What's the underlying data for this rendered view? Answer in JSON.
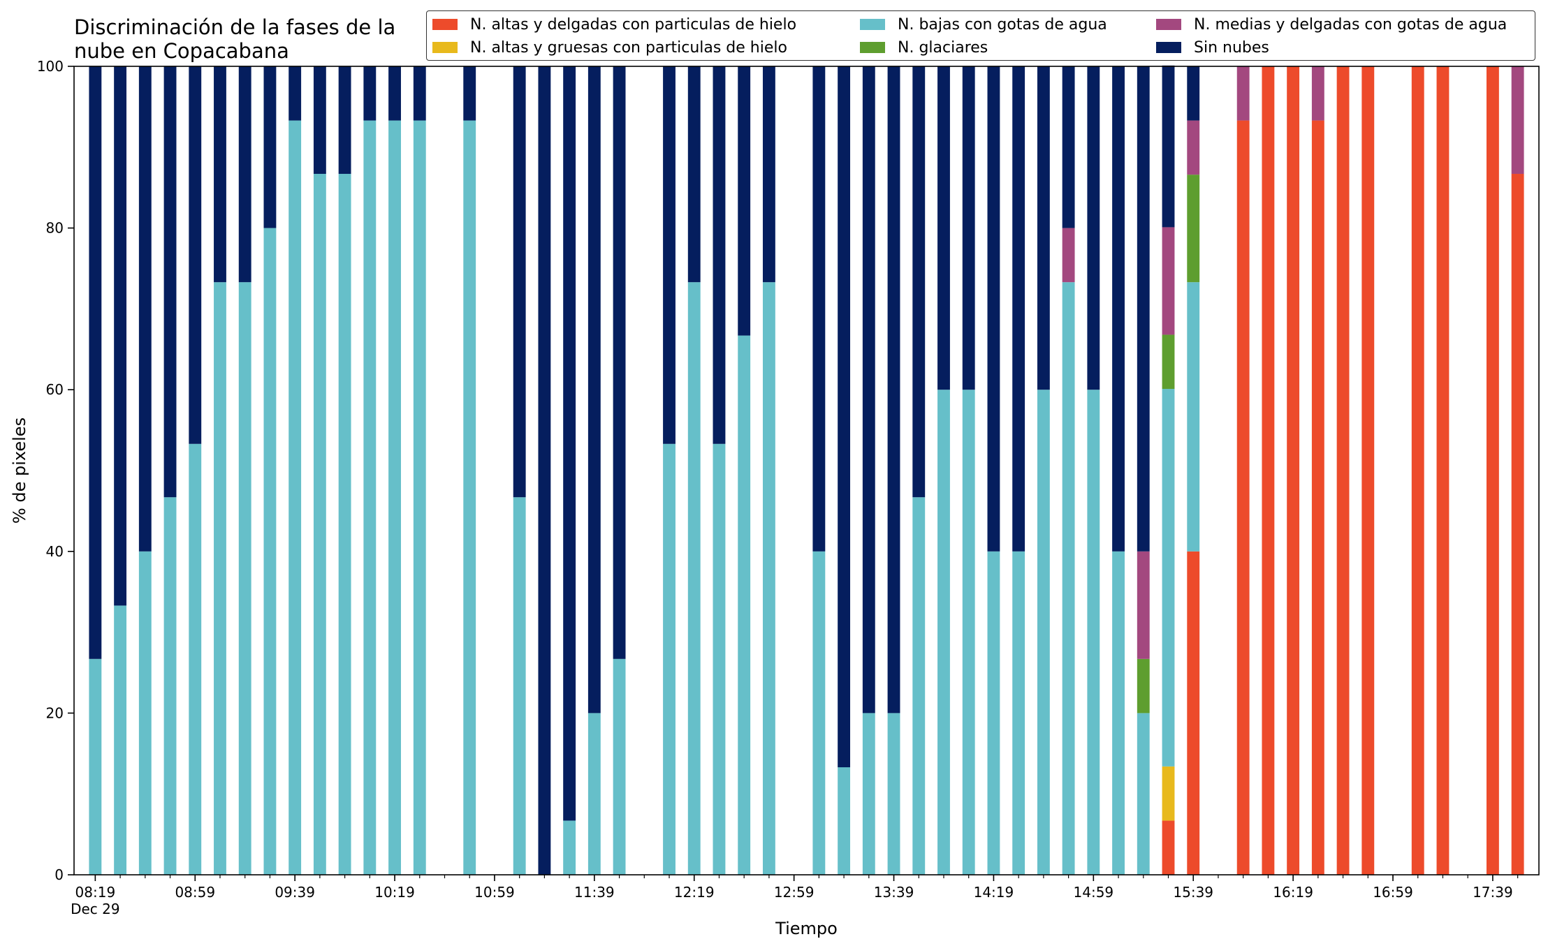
{
  "chart_data": {
    "type": "bar",
    "stacked": true,
    "title": "Discriminación de la fases de la\nnube en Copacabana",
    "xlabel": "Tiempo",
    "ylabel": "% de pixeles",
    "ylim": [
      0,
      100
    ],
    "yticks": [
      0,
      20,
      40,
      60,
      80,
      100
    ],
    "x_start": "08:19",
    "x_step_minutes": 10,
    "x_end": "17:49",
    "x_ticks": [
      {
        "label": "08:19",
        "sub": "Dec 29",
        "t": "08:19"
      },
      {
        "label": "08:59",
        "t": "08:59"
      },
      {
        "label": "09:39",
        "t": "09:39"
      },
      {
        "label": "10:19",
        "t": "10:19"
      },
      {
        "label": "10:59",
        "t": "10:59"
      },
      {
        "label": "11:39",
        "t": "11:39"
      },
      {
        "label": "12:19",
        "t": "12:19"
      },
      {
        "label": "12:59",
        "t": "12:59"
      },
      {
        "label": "13:39",
        "t": "13:39"
      },
      {
        "label": "14:19",
        "t": "14:19"
      },
      {
        "label": "14:59",
        "t": "14:59"
      },
      {
        "label": "15:39",
        "t": "15:39"
      },
      {
        "label": "16:19",
        "t": "16:19"
      },
      {
        "label": "16:59",
        "t": "16:59"
      },
      {
        "label": "17:39",
        "t": "17:39"
      }
    ],
    "legend_position": "top-right",
    "series_order": [
      "altas_delgadas",
      "altas_gruesas",
      "bajas",
      "glaciares",
      "medias",
      "sin_nubes"
    ],
    "series": [
      {
        "key": "altas_delgadas",
        "name": "N. altas y delgadas con particulas de hielo",
        "color": "#ed4b2b"
      },
      {
        "key": "altas_gruesas",
        "name": "N. altas y gruesas con particulas de hielo",
        "color": "#e8b91c"
      },
      {
        "key": "bajas",
        "name": "N. bajas con gotas de agua",
        "color": "#66bfc9"
      },
      {
        "key": "glaciares",
        "name": "N. glaciares",
        "color": "#5e9e2f"
      },
      {
        "key": "medias",
        "name": "N. medias y delgadas con gotas de agua",
        "color": "#a3487f"
      },
      {
        "key": "sin_nubes",
        "name": "Sin nubes",
        "color": "#051e5e"
      }
    ],
    "bars": [
      {
        "t": "08:19",
        "bajas": 26.7,
        "sin_nubes": 73.3
      },
      {
        "t": "08:29",
        "bajas": 33.3,
        "sin_nubes": 66.7
      },
      {
        "t": "08:39",
        "bajas": 40.0,
        "sin_nubes": 60.0
      },
      {
        "t": "08:49",
        "bajas": 46.7,
        "sin_nubes": 53.3
      },
      {
        "t": "08:59",
        "bajas": 53.3,
        "sin_nubes": 46.7
      },
      {
        "t": "09:09",
        "bajas": 73.3,
        "sin_nubes": 26.7
      },
      {
        "t": "09:19",
        "bajas": 73.3,
        "sin_nubes": 26.7
      },
      {
        "t": "09:29",
        "bajas": 80.0,
        "sin_nubes": 20.0
      },
      {
        "t": "09:39",
        "bajas": 93.3,
        "sin_nubes": 6.7
      },
      {
        "t": "09:49",
        "bajas": 86.7,
        "sin_nubes": 13.3
      },
      {
        "t": "09:59",
        "bajas": 86.7,
        "sin_nubes": 13.3
      },
      {
        "t": "10:09",
        "bajas": 93.3,
        "sin_nubes": 6.7
      },
      {
        "t": "10:19",
        "bajas": 93.3,
        "sin_nubes": 6.7
      },
      {
        "t": "10:29",
        "bajas": 93.3,
        "sin_nubes": 6.7
      },
      {
        "t": "10:49",
        "bajas": 93.3,
        "sin_nubes": 6.7
      },
      {
        "t": "11:09",
        "bajas": 46.7,
        "sin_nubes": 53.3
      },
      {
        "t": "11:19",
        "bajas": 0,
        "sin_nubes": 100
      },
      {
        "t": "11:29",
        "bajas": 6.7,
        "sin_nubes": 93.3
      },
      {
        "t": "11:39",
        "bajas": 20.0,
        "sin_nubes": 80.0
      },
      {
        "t": "11:49",
        "bajas": 26.7,
        "sin_nubes": 73.3
      },
      {
        "t": "12:09",
        "bajas": 53.3,
        "sin_nubes": 46.7
      },
      {
        "t": "12:19",
        "bajas": 73.3,
        "sin_nubes": 26.7
      },
      {
        "t": "12:29",
        "bajas": 53.3,
        "sin_nubes": 46.7
      },
      {
        "t": "12:39",
        "bajas": 66.7,
        "sin_nubes": 33.3
      },
      {
        "t": "12:49",
        "bajas": 73.3,
        "sin_nubes": 26.7
      },
      {
        "t": "13:09",
        "bajas": 40.0,
        "sin_nubes": 60.0
      },
      {
        "t": "13:19",
        "bajas": 13.3,
        "sin_nubes": 86.7
      },
      {
        "t": "13:29",
        "bajas": 20.0,
        "sin_nubes": 80.0
      },
      {
        "t": "13:39",
        "bajas": 20.0,
        "sin_nubes": 80.0
      },
      {
        "t": "13:49",
        "bajas": 46.7,
        "sin_nubes": 53.3
      },
      {
        "t": "13:59",
        "bajas": 60.0,
        "sin_nubes": 40.0
      },
      {
        "t": "14:09",
        "bajas": 60.0,
        "sin_nubes": 40.0
      },
      {
        "t": "14:19",
        "bajas": 40.0,
        "sin_nubes": 60.0
      },
      {
        "t": "14:29",
        "bajas": 40.0,
        "sin_nubes": 60.0
      },
      {
        "t": "14:39",
        "bajas": 60.0,
        "sin_nubes": 40.0
      },
      {
        "t": "14:49",
        "bajas": 73.3,
        "medias": 6.7,
        "sin_nubes": 20.0
      },
      {
        "t": "14:59",
        "bajas": 60.0,
        "sin_nubes": 40.0
      },
      {
        "t": "15:09",
        "bajas": 40.0,
        "sin_nubes": 60.0
      },
      {
        "t": "15:19",
        "bajas": 20.0,
        "glaciares": 6.7,
        "medias": 13.3,
        "sin_nubes": 60.0
      },
      {
        "t": "15:29",
        "altas_delgadas": 6.7,
        "altas_gruesas": 6.7,
        "bajas": 46.7,
        "glaciares": 6.7,
        "medias": 13.3,
        "sin_nubes": 20.0
      },
      {
        "t": "15:39",
        "altas_delgadas": 40.0,
        "bajas": 33.3,
        "glaciares": 13.3,
        "medias": 6.7,
        "sin_nubes": 6.7
      },
      {
        "t": "15:59",
        "altas_delgadas": 93.3,
        "medias": 6.7
      },
      {
        "t": "16:09",
        "altas_delgadas": 100
      },
      {
        "t": "16:19",
        "altas_delgadas": 100
      },
      {
        "t": "16:29",
        "altas_delgadas": 93.3,
        "medias": 6.7
      },
      {
        "t": "16:39",
        "altas_delgadas": 100
      },
      {
        "t": "16:49",
        "altas_delgadas": 100
      },
      {
        "t": "17:09",
        "altas_delgadas": 100
      },
      {
        "t": "17:19",
        "altas_delgadas": 100
      },
      {
        "t": "17:39",
        "altas_delgadas": 100
      },
      {
        "t": "17:49",
        "altas_delgadas": 86.7,
        "medias": 13.3
      }
    ]
  }
}
